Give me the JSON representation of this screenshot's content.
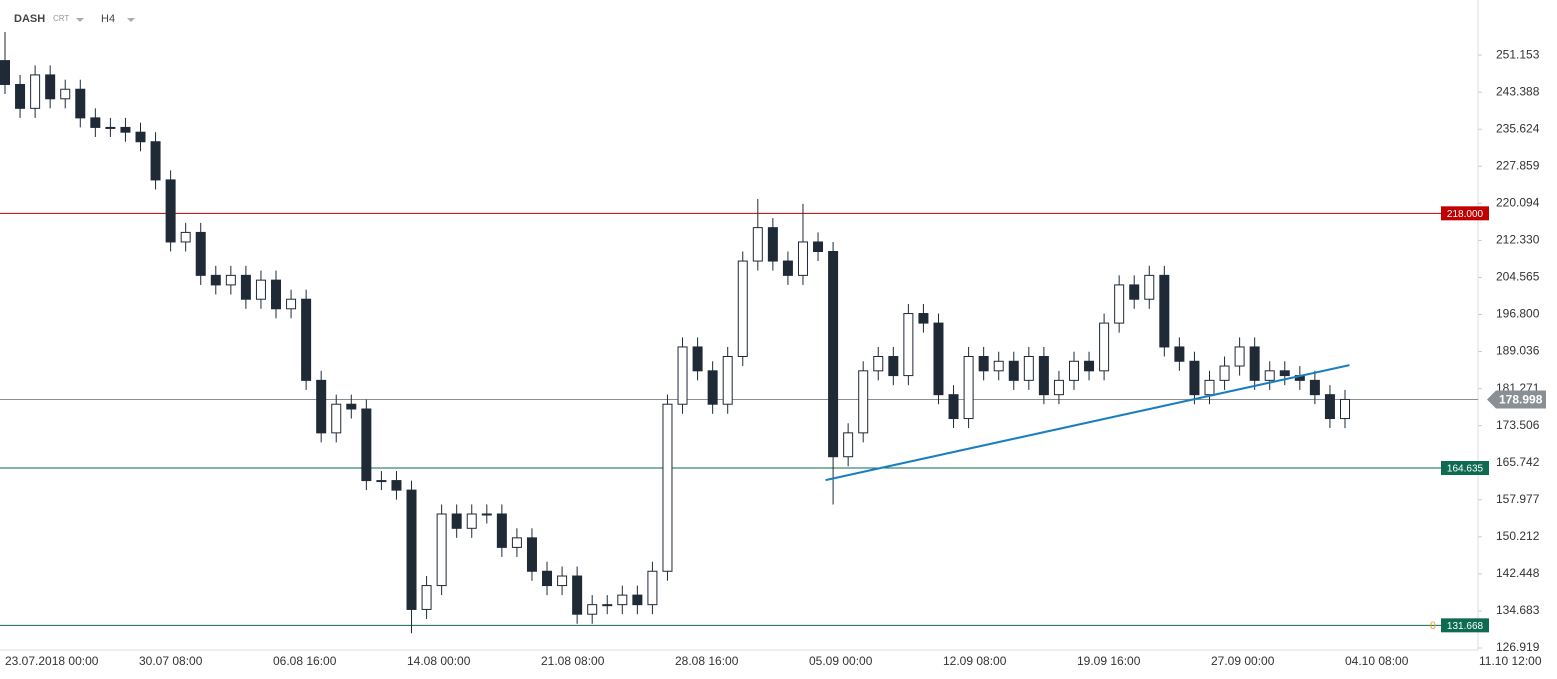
{
  "header": {
    "symbol": "DASH",
    "feed": "CRT",
    "timeframe": "H4"
  },
  "chart_data": {
    "type": "candlestick",
    "candles": {
      "open": [
        250,
        245,
        240,
        247,
        242,
        244,
        238,
        236,
        236,
        235,
        233,
        225,
        212,
        214,
        205,
        203,
        205,
        200,
        204,
        198,
        200,
        183,
        172,
        178,
        177,
        162,
        162,
        160,
        135,
        140,
        155,
        152,
        155,
        155,
        148,
        150,
        143,
        140,
        142,
        134,
        136,
        136,
        138,
        136,
        143,
        178,
        190,
        185,
        178,
        188,
        208,
        215,
        208,
        205,
        212,
        210,
        167,
        172,
        185,
        188,
        184,
        197,
        195,
        180,
        175,
        188,
        185,
        187,
        183,
        188,
        180,
        183,
        187,
        185,
        195,
        203,
        200,
        205,
        190,
        187,
        180,
        183,
        186,
        190,
        183,
        185,
        184,
        183,
        180,
        175
      ],
      "high": [
        256,
        247,
        249,
        249,
        246,
        246,
        240,
        238,
        238,
        237,
        235,
        227,
        216,
        216,
        207,
        207,
        207,
        206,
        206,
        202,
        202,
        185,
        180,
        180,
        179,
        164,
        164,
        162,
        142,
        157,
        157,
        157,
        157,
        157,
        152,
        152,
        145,
        144,
        144,
        138,
        138,
        140,
        140,
        145,
        180,
        192,
        192,
        187,
        190,
        210,
        221,
        217,
        210,
        220,
        214,
        212,
        174,
        187,
        190,
        190,
        199,
        199,
        197,
        182,
        190,
        190,
        189,
        189,
        190,
        190,
        185,
        189,
        189,
        197,
        205,
        205,
        207,
        207,
        192,
        189,
        185,
        188,
        192,
        192,
        187,
        187,
        186,
        185,
        182,
        181
      ],
      "low": [
        243,
        238,
        238,
        240,
        240,
        236,
        234,
        234,
        233,
        231,
        223,
        210,
        210,
        203,
        201,
        201,
        198,
        198,
        196,
        196,
        181,
        170,
        170,
        175,
        160,
        160,
        158,
        130,
        133,
        138,
        150,
        150,
        153,
        146,
        146,
        141,
        138,
        138,
        132,
        132,
        134,
        134,
        134,
        134,
        141,
        176,
        183,
        176,
        176,
        186,
        206,
        206,
        203,
        203,
        208,
        157,
        165,
        170,
        183,
        182,
        182,
        193,
        178,
        173,
        173,
        183,
        183,
        181,
        181,
        178,
        178,
        181,
        183,
        183,
        193,
        198,
        198,
        188,
        185,
        178,
        178,
        181,
        184,
        181,
        181,
        182,
        181,
        178,
        173,
        173
      ],
      "close": [
        245,
        240,
        247,
        242,
        244,
        238,
        236,
        236,
        235,
        233,
        225,
        212,
        214,
        205,
        203,
        205,
        200,
        204,
        198,
        200,
        183,
        172,
        178,
        177,
        162,
        162,
        160,
        135,
        140,
        155,
        152,
        155,
        155,
        148,
        150,
        143,
        140,
        142,
        134,
        136,
        136,
        138,
        136,
        143,
        178,
        190,
        185,
        178,
        188,
        208,
        215,
        208,
        205,
        212,
        210,
        167,
        172,
        185,
        188,
        184,
        197,
        195,
        180,
        175,
        188,
        185,
        187,
        183,
        188,
        180,
        183,
        187,
        185,
        195,
        203,
        200,
        205,
        190,
        187,
        180,
        183,
        186,
        190,
        183,
        185,
        184,
        183,
        180,
        175,
        178.998
      ]
    },
    "up_color": "#ffffff",
    "down_color": "#1f2a36",
    "wick_color": "#1f2a36",
    "ylim": [
      126.5,
      262.7
    ],
    "yticks": [
      251.153,
      243.388,
      235.624,
      227.859,
      {
        "value": 220.094,
        "label": "220.094"
      },
      {
        "value": 212.33,
        "label": "212.330"
      },
      204.565,
      {
        "value": 196.8,
        "label": "196.800"
      },
      189.036,
      181.271,
      173.506,
      165.742,
      157.977,
      150.212,
      142.448,
      134.683,
      126.919
    ],
    "xticks": [
      "23.07.2018  00:00",
      "30.07  08:00",
      "06.08  16:00",
      "14.08  00:00",
      "21.08  08:00",
      "28.08  16:00",
      "05.09  00:00",
      "12.09  08:00",
      "19.09  16:00",
      "27.09  00:00",
      "04.10  08:00",
      "11.10  12:00"
    ],
    "levels": [
      {
        "value": 218,
        "label": "218.000",
        "color": "#c00000"
      },
      {
        "value": 164.635,
        "label": "164.635",
        "color": "#0e6b52"
      },
      {
        "value": 131.668,
        "label": "131.668",
        "color": "#0e6b52",
        "note": "0"
      }
    ],
    "last_price": {
      "value": 178.998,
      "label": "178.998",
      "color": "#8a8f96"
    },
    "trendline": {
      "from": {
        "index": 54.5,
        "price": 162.1
      },
      "to": {
        "index": 89.3,
        "price": 186.2
      },
      "color": "#1a7fc0"
    }
  }
}
